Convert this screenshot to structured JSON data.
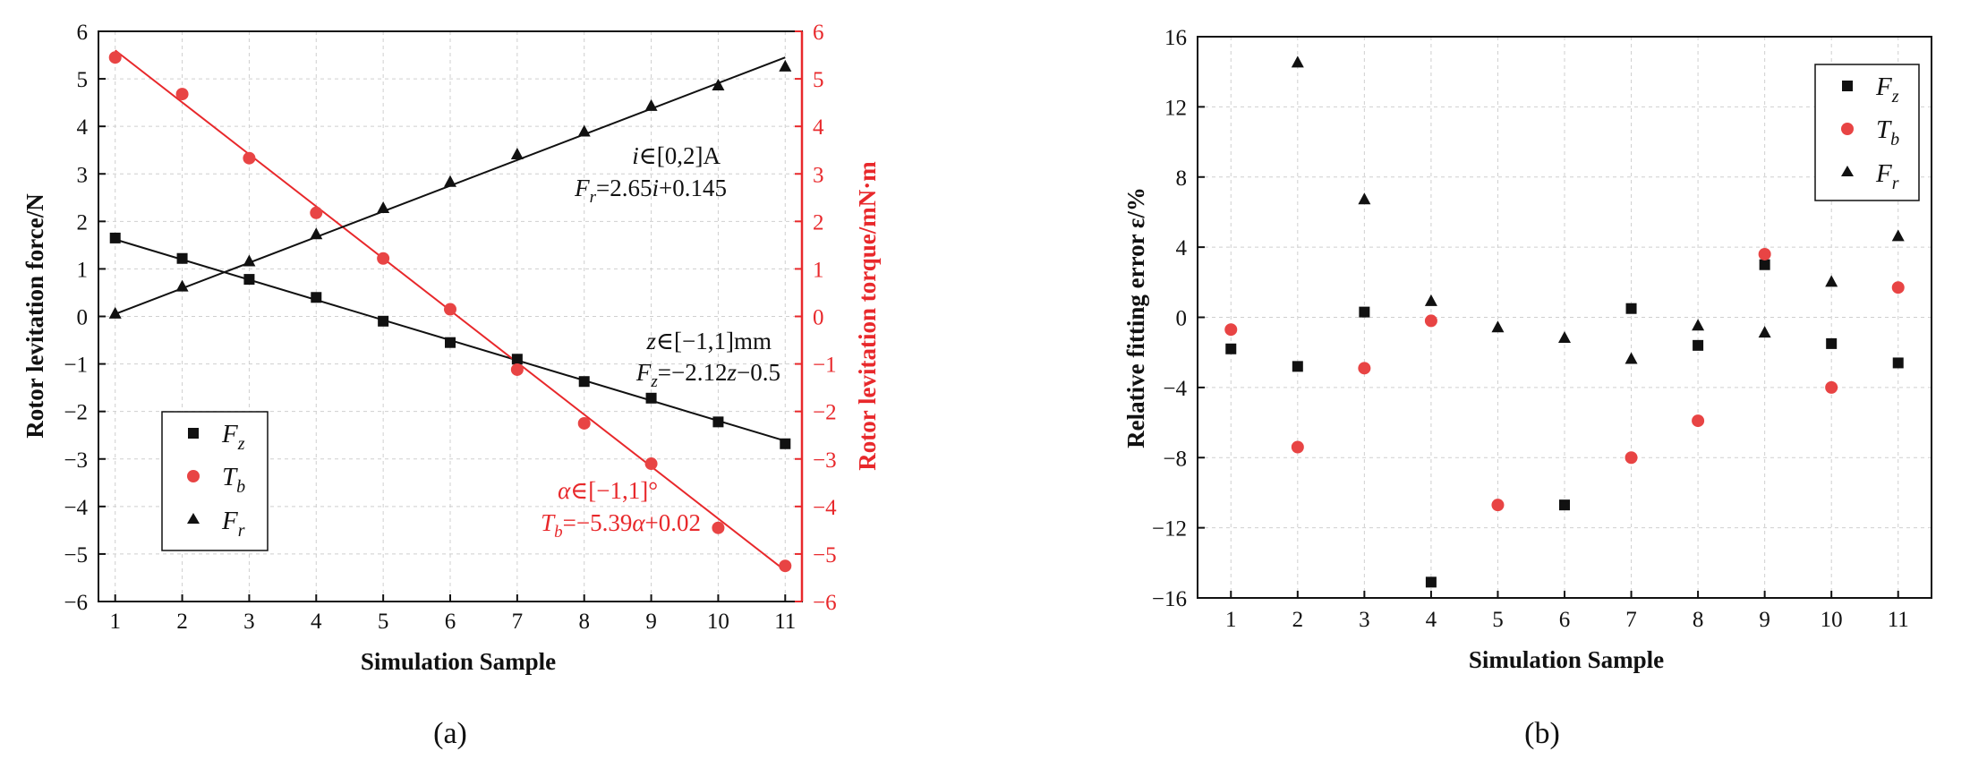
{
  "colors": {
    "black": "#111111",
    "red": "#e8282b",
    "red_marker": "#e84444",
    "grid": "#cfcfcf"
  },
  "chart_data": [
    {
      "id": "a",
      "type": "scatter",
      "panel_label": "(a)",
      "xlabel": "Simulation Sample",
      "ylabel": "Rotor levitation force/N",
      "ylabel_right": "Rotor levitation torque/mN·m",
      "xlim": [
        0.75,
        11.25
      ],
      "ylim": [
        -6,
        6
      ],
      "ylim_right": [
        -6,
        6
      ],
      "grid": true,
      "x": [
        1,
        2,
        3,
        4,
        5,
        6,
        7,
        8,
        9,
        10,
        11
      ],
      "xticks": [
        "1",
        "2",
        "3",
        "4",
        "5",
        "6",
        "7",
        "8",
        "9",
        "10",
        "11"
      ],
      "yticks": [
        "6",
        "5",
        "4",
        "3",
        "2",
        "1",
        "0",
        "−1",
        "−2",
        "−3",
        "−4",
        "−5",
        "−6"
      ],
      "yticks_right": [
        "6",
        "5",
        "4",
        "3",
        "2",
        "1",
        "0",
        "−1",
        "−2",
        "−3",
        "−4",
        "−5",
        "−6"
      ],
      "series": [
        {
          "name": "F_z",
          "label_main": "F",
          "label_sub": "z",
          "marker": "square",
          "color": "#111111",
          "axis": "left",
          "values": [
            1.65,
            1.22,
            0.78,
            0.4,
            -0.1,
            -0.55,
            -0.9,
            -1.37,
            -1.72,
            -2.22,
            -2.68
          ],
          "fit_line": [
            1.62,
            -2.62
          ]
        },
        {
          "name": "T_b",
          "label_main": "T",
          "label_sub": "b",
          "marker": "circle",
          "color": "#e84444",
          "axis": "right",
          "values": [
            5.45,
            4.68,
            3.33,
            2.18,
            1.22,
            0.15,
            -1.12,
            -2.25,
            -3.1,
            -4.45,
            -5.25
          ],
          "fit_line": [
            5.6,
            -5.35
          ]
        },
        {
          "name": "F_r",
          "label_main": "F",
          "label_sub": "r",
          "marker": "triangle",
          "color": "#111111",
          "axis": "left",
          "values": [
            0.05,
            0.62,
            1.15,
            1.72,
            2.27,
            2.82,
            3.4,
            3.88,
            4.42,
            4.85,
            5.25
          ],
          "fit_line": [
            0.05,
            5.45
          ]
        }
      ],
      "legend_position": "bottom-left",
      "annotations": [
        {
          "line1": "i∈[0,2]A",
          "line2": "Fr=2.65i+0.145",
          "color": "black"
        },
        {
          "line1": "z∈[−1,1]mm",
          "line2": "Fz=−2.12z−0.5",
          "color": "black"
        },
        {
          "line1": "α∈[−1,1]°",
          "line2": "Tb=−5.39α+0.02",
          "color": "red"
        }
      ]
    },
    {
      "id": "b",
      "type": "scatter",
      "panel_label": "(b)",
      "xlabel": "Simulation Sample",
      "ylabel": "Relative fitting error ε/%",
      "xlim": [
        0.5,
        11.5
      ],
      "ylim": [
        -16,
        16
      ],
      "grid": true,
      "x": [
        1,
        2,
        3,
        4,
        5,
        6,
        7,
        8,
        9,
        10,
        11
      ],
      "xticks": [
        "1",
        "2",
        "3",
        "4",
        "5",
        "6",
        "7",
        "8",
        "9",
        "10",
        "11"
      ],
      "yticks": [
        "16",
        "12",
        "8",
        "4",
        "0",
        "−4",
        "−8",
        "−12",
        "−16"
      ],
      "series": [
        {
          "name": "F_z",
          "label_main": "F",
          "label_sub": "z",
          "marker": "square",
          "color": "#111111",
          "values": [
            -1.8,
            -2.8,
            0.3,
            -15.1,
            null,
            -10.7,
            0.5,
            -1.6,
            3.0,
            -1.5,
            -2.6
          ]
        },
        {
          "name": "T_b",
          "label_main": "T",
          "label_sub": "b",
          "marker": "circle",
          "color": "#e84444",
          "values": [
            -0.7,
            -7.4,
            -2.9,
            -0.2,
            -10.7,
            null,
            -8.0,
            -5.9,
            3.6,
            -4.0,
            1.7
          ]
        },
        {
          "name": "F_r",
          "label_main": "F",
          "label_sub": "r",
          "marker": "triangle",
          "color": "#111111",
          "values": [
            null,
            14.5,
            6.7,
            0.9,
            -0.6,
            -1.2,
            -2.4,
            -0.5,
            -0.9,
            2.0,
            4.6
          ]
        }
      ],
      "legend_position": "top-right"
    }
  ]
}
